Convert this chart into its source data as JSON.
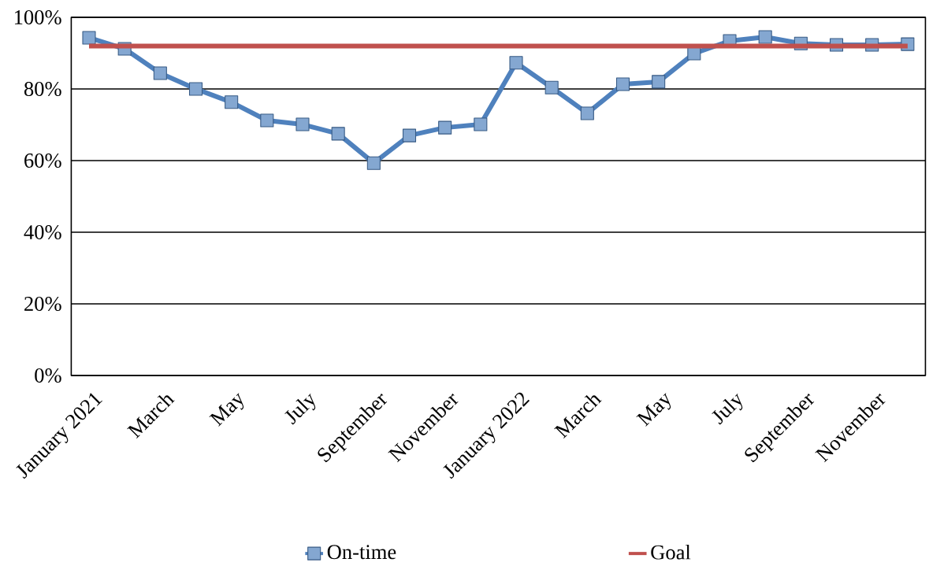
{
  "chart_data": {
    "type": "line",
    "categories": [
      "January 2021",
      null,
      "March",
      null,
      "May",
      null,
      "July",
      null,
      "September",
      null,
      "November",
      null,
      "January 2022",
      null,
      "March",
      null,
      "May",
      null,
      "July",
      null,
      "September",
      null,
      "November",
      null
    ],
    "series": [
      {
        "name": "On-time",
        "color": "#4f81bd",
        "marker": "square",
        "values": [
          94.3,
          91.2,
          84.4,
          80,
          76.3,
          71.2,
          70.1,
          67.5,
          59.3,
          67,
          69.2,
          70.1,
          87.3,
          80.4,
          73.2,
          81.3,
          82,
          89.9,
          93.4,
          94.5,
          92.7,
          92.3,
          92.3,
          92.5
        ]
      },
      {
        "name": "Goal",
        "color": "#c0504d",
        "marker": "none",
        "values": [
          92,
          92,
          92,
          92,
          92,
          92,
          92,
          92,
          92,
          92,
          92,
          92,
          92,
          92,
          92,
          92,
          92,
          92,
          92,
          92,
          92,
          92,
          92,
          92
        ]
      }
    ],
    "ylim": [
      0,
      100
    ],
    "yticks": [
      {
        "value": 0,
        "label": "0%"
      },
      {
        "value": 20,
        "label": "20%"
      },
      {
        "value": 40,
        "label": "40%"
      },
      {
        "value": 60,
        "label": "60%"
      },
      {
        "value": 80,
        "label": "80%"
      },
      {
        "value": 100,
        "label": "100%"
      }
    ],
    "grid": "y",
    "legend": "bottom",
    "line_style": "solid"
  }
}
